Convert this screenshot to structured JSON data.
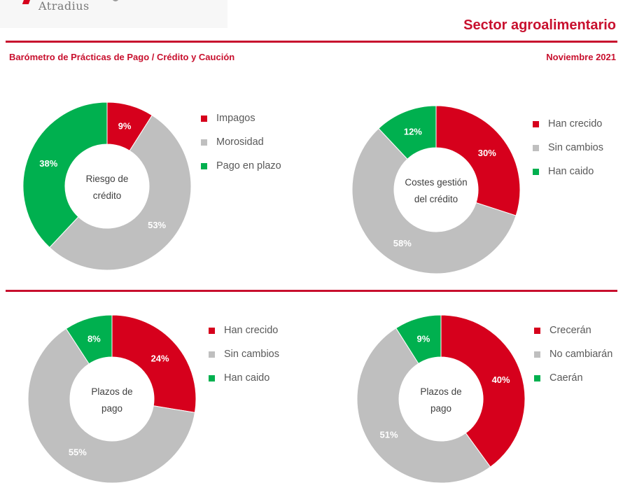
{
  "header": {
    "logo_text": "Atradius",
    "sector_title": "Sector agroalimentario",
    "subtitle": "Barómetro de Prácticas de Pago / Crédito y Caución",
    "date": "Noviembre 2021"
  },
  "colors": {
    "red": "#d6001c",
    "gray": "#bfbfbf",
    "green": "#00b04f",
    "accent": "#c8102e"
  },
  "chart_data": [
    {
      "type": "pie",
      "title": "Riesgo de crédito",
      "center_lines": [
        "Riesgo de",
        "crédito"
      ],
      "labels": [
        "Impagos",
        "Morosidad",
        "Pago en plazo"
      ],
      "values": [
        9,
        53,
        38
      ],
      "value_labels": [
        "9%",
        "53%",
        "38%"
      ],
      "colors": [
        "#d6001c",
        "#bfbfbf",
        "#00b04f"
      ],
      "legend_position": "right"
    },
    {
      "type": "pie",
      "title": "Costes gestión del crédito",
      "center_lines": [
        "Costes gestión",
        "del crédito"
      ],
      "labels": [
        "Han crecido",
        "Sin cambios",
        "Han caido"
      ],
      "values": [
        30,
        58,
        12
      ],
      "value_labels": [
        "30%",
        "58%",
        "12%"
      ],
      "colors": [
        "#d6001c",
        "#bfbfbf",
        "#00b04f"
      ],
      "legend_position": "right"
    },
    {
      "type": "pie",
      "title": "Plazos de pago",
      "center_lines": [
        "Plazos de",
        "pago"
      ],
      "labels": [
        "Han crecido",
        "Sin cambios",
        "Han caido"
      ],
      "values": [
        24,
        55,
        8
      ],
      "value_labels": [
        "24%",
        "55%",
        "8%"
      ],
      "colors": [
        "#d6001c",
        "#bfbfbf",
        "#00b04f"
      ],
      "legend_position": "right"
    },
    {
      "type": "pie",
      "title": "Plazos de pago",
      "center_lines": [
        "Plazos de",
        "pago"
      ],
      "labels": [
        "Crecerán",
        "No cambiarán",
        "Caerán"
      ],
      "values": [
        40,
        51,
        9
      ],
      "value_labels": [
        "40%",
        "51%",
        "9%"
      ],
      "colors": [
        "#d6001c",
        "#bfbfbf",
        "#00b04f"
      ],
      "legend_position": "right"
    }
  ]
}
